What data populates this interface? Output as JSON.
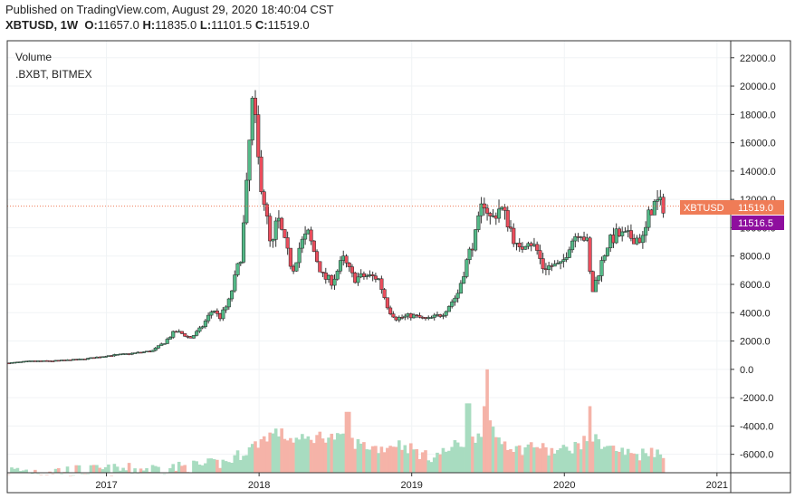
{
  "header": {
    "published": "Published on TradingView.com, August 29, 2020 18:40:04 CST",
    "symbol": "XBTUSD, 1W",
    "o_label": "O:",
    "o_value": "11657.0",
    "h_label": "H:",
    "h_value": "11835.0",
    "l_label": "L:",
    "l_value": "11101.5",
    "c_label": "C:",
    "c_value": "11519.0"
  },
  "legend": {
    "line1": "Volume",
    "line2": ".BXBT, BITMEX"
  },
  "price_tags": {
    "symbol_label": "XBTUSD",
    "last_price": "11519.0",
    "index_price": "11516.5",
    "last_value": 11519,
    "index_value": 11516.5
  },
  "colors": {
    "up": "#26a69a",
    "down": "#ef5350",
    "candle_up_body": "#53b987",
    "candle_down_body": "#eb4d5c",
    "wick": "#333333",
    "volume_up": "#a8dcc0",
    "volume_down": "#f5b3a8",
    "last_price_tag": "#ef7c57",
    "index_price_tag": "#8e0e9e",
    "index_line": "#b05fd0"
  },
  "chart_data": {
    "type": "candlestick",
    "interval": "1W",
    "y_axis_labels": [
      "22000.0",
      "20000.0",
      "18000.0",
      "16000.0",
      "14000.0",
      "12000.0",
      "10000.0",
      "8000.0",
      "6000.0",
      "4000.0",
      "2000.0",
      "0.0",
      "-2000.0",
      "-4000.0",
      "-6000.0"
    ],
    "y_axis_values": [
      22000,
      20000,
      18000,
      16000,
      14000,
      12000,
      10000,
      8000,
      6000,
      4000,
      2000,
      0,
      -2000,
      -4000,
      -6000
    ],
    "ylim": [
      -7300,
      23200
    ],
    "x_axis_labels": [
      "2017",
      "2018",
      "2019",
      "2020",
      "2021"
    ],
    "x_axis_values": [
      2017,
      2018,
      2019,
      2020,
      2021
    ],
    "xlim": [
      2016.35,
      2021.09
    ],
    "price_path": [
      [
        2016.36,
        450
      ],
      [
        2016.5,
        580
      ],
      [
        2016.65,
        600
      ],
      [
        2016.85,
        720
      ],
      [
        2017.0,
        960
      ],
      [
        2017.15,
        1100
      ],
      [
        2017.3,
        1300
      ],
      [
        2017.38,
        1900
      ],
      [
        2017.45,
        2700
      ],
      [
        2017.5,
        2500
      ],
      [
        2017.55,
        2200
      ],
      [
        2017.62,
        2900
      ],
      [
        2017.7,
        4300
      ],
      [
        2017.74,
        3600
      ],
      [
        2017.8,
        4700
      ],
      [
        2017.85,
        6800
      ],
      [
        2017.88,
        8000
      ],
      [
        2017.91,
        11500
      ],
      [
        2017.94,
        16500
      ],
      [
        2017.96,
        19200
      ],
      [
        2018.0,
        14000
      ],
      [
        2018.04,
        11500
      ],
      [
        2018.08,
        8200
      ],
      [
        2018.12,
        10800
      ],
      [
        2018.17,
        8800
      ],
      [
        2018.22,
        7000
      ],
      [
        2018.27,
        8800
      ],
      [
        2018.32,
        9600
      ],
      [
        2018.37,
        8000
      ],
      [
        2018.42,
        6500
      ],
      [
        2018.48,
        6200
      ],
      [
        2018.55,
        7800
      ],
      [
        2018.62,
        6400
      ],
      [
        2018.7,
        6600
      ],
      [
        2018.78,
        6450
      ],
      [
        2018.85,
        4200
      ],
      [
        2018.9,
        3600
      ],
      [
        2018.95,
        3700
      ],
      [
        2019.0,
        3800
      ],
      [
        2019.1,
        3500
      ],
      [
        2019.2,
        3900
      ],
      [
        2019.3,
        5300
      ],
      [
        2019.37,
        8000
      ],
      [
        2019.42,
        9500
      ],
      [
        2019.47,
        12000
      ],
      [
        2019.52,
        10500
      ],
      [
        2019.58,
        11500
      ],
      [
        2019.64,
        10200
      ],
      [
        2019.7,
        8200
      ],
      [
        2019.76,
        9300
      ],
      [
        2019.82,
        8400
      ],
      [
        2019.86,
        7200
      ],
      [
        2019.92,
        7300
      ],
      [
        2019.98,
        7300
      ],
      [
        2020.04,
        9000
      ],
      [
        2020.1,
        9900
      ],
      [
        2020.15,
        8900
      ],
      [
        2020.18,
        5300
      ],
      [
        2020.22,
        6700
      ],
      [
        2020.28,
        8800
      ],
      [
        2020.34,
        9500
      ],
      [
        2020.4,
        9400
      ],
      [
        2020.46,
        9300
      ],
      [
        2020.52,
        9200
      ],
      [
        2020.56,
        11200
      ],
      [
        2020.6,
        11800
      ],
      [
        2020.65,
        11519
      ]
    ],
    "volume_path": [
      [
        2016.36,
        -7150
      ],
      [
        2016.8,
        -7150
      ],
      [
        2017.0,
        -7100
      ],
      [
        2017.3,
        -7000
      ],
      [
        2017.5,
        -6900
      ],
      [
        2017.7,
        -6700
      ],
      [
        2017.8,
        -6500
      ],
      [
        2017.86,
        -6100
      ],
      [
        2017.92,
        -5700
      ],
      [
        2017.98,
        -5300
      ],
      [
        2018.05,
        -4700
      ],
      [
        2018.12,
        -4400
      ],
      [
        2018.2,
        -4900
      ],
      [
        2018.3,
        -5000
      ],
      [
        2018.4,
        -4700
      ],
      [
        2018.5,
        -4800
      ],
      [
        2018.6,
        -5100
      ],
      [
        2018.7,
        -5400
      ],
      [
        2018.8,
        -5600
      ],
      [
        2018.9,
        -5200
      ],
      [
        2019.0,
        -5600
      ],
      [
        2019.1,
        -6200
      ],
      [
        2019.2,
        -5900
      ],
      [
        2019.3,
        -5300
      ],
      [
        2019.38,
        -5200
      ],
      [
        2019.45,
        -4400
      ],
      [
        2019.5,
        -3800
      ],
      [
        2019.55,
        -4700
      ],
      [
        2019.62,
        -5200
      ],
      [
        2019.7,
        -5700
      ],
      [
        2019.8,
        -5300
      ],
      [
        2019.9,
        -5800
      ],
      [
        2020.0,
        -5700
      ],
      [
        2020.1,
        -5300
      ],
      [
        2020.18,
        -4800
      ],
      [
        2020.24,
        -5200
      ],
      [
        2020.3,
        -5500
      ],
      [
        2020.4,
        -5900
      ],
      [
        2020.5,
        -6000
      ],
      [
        2020.57,
        -5600
      ],
      [
        2020.65,
        -6300
      ]
    ],
    "volume_spikes": [
      [
        2019.5,
        0.0
      ],
      [
        2019.37,
        -2400
      ],
      [
        2019.48,
        -2600
      ],
      [
        2018.58,
        -3000
      ],
      [
        2020.17,
        -2600
      ]
    ]
  }
}
